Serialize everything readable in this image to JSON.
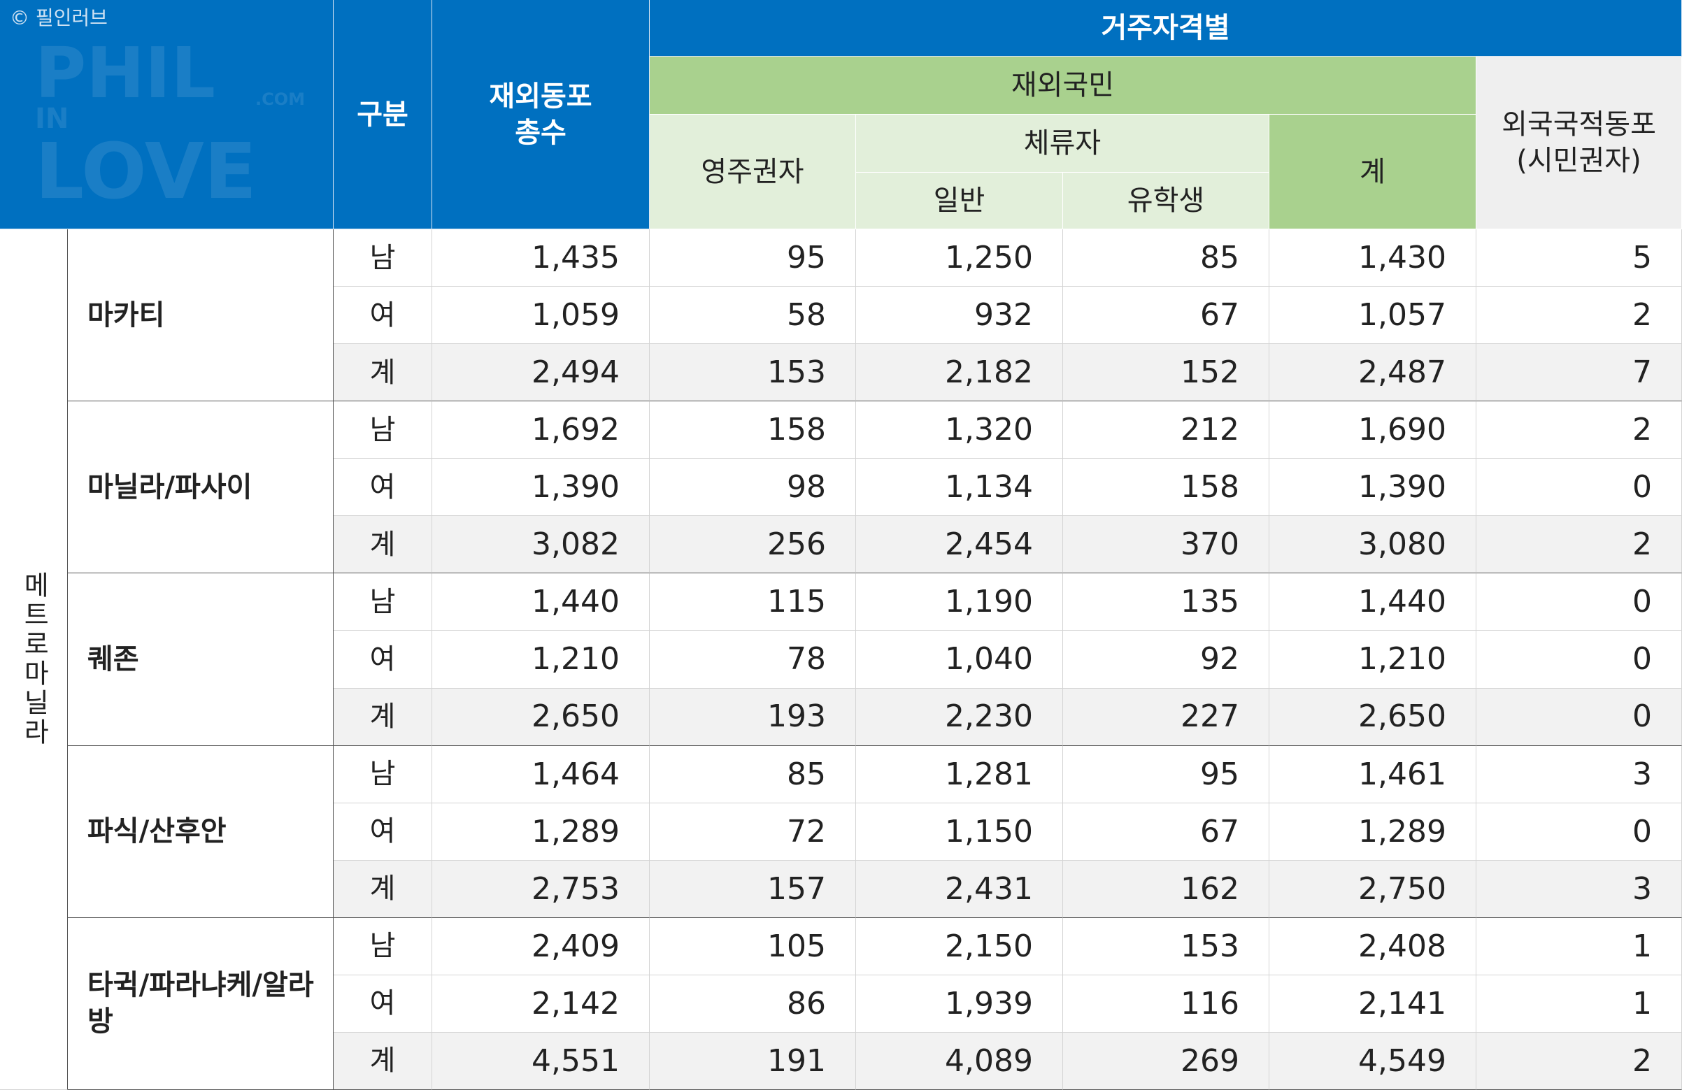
{
  "watermark": {
    "copyright": "© 필인러브",
    "logo": [
      "PHIL",
      "IN",
      "LOVE",
      ".COM"
    ]
  },
  "header": {
    "category": "구분",
    "total": [
      "재외동포",
      "총수"
    ],
    "group": "거주자격별",
    "nationals": "재외국민",
    "permanent": "영주권자",
    "sojourner": "체류자",
    "general": "일반",
    "student": "유학생",
    "subtotal": "계",
    "foreign": [
      "외국국적동포",
      "(시민권자)"
    ]
  },
  "table": {
    "metro": "메트로마닐라",
    "districts": [
      {
        "name": "마카티",
        "rows": [
          {
            "label": "남",
            "values": [
              "1,435",
              "95",
              "1,250",
              "85",
              "1,430",
              "5"
            ]
          },
          {
            "label": "여",
            "values": [
              "1,059",
              "58",
              "932",
              "67",
              "1,057",
              "2"
            ]
          },
          {
            "label": "계",
            "values": [
              "2,494",
              "153",
              "2,182",
              "152",
              "2,487",
              "7"
            ]
          }
        ]
      },
      {
        "name": "마닐라/파사이",
        "rows": [
          {
            "label": "남",
            "values": [
              "1,692",
              "158",
              "1,320",
              "212",
              "1,690",
              "2"
            ]
          },
          {
            "label": "여",
            "values": [
              "1,390",
              "98",
              "1,134",
              "158",
              "1,390",
              "0"
            ]
          },
          {
            "label": "계",
            "values": [
              "3,082",
              "256",
              "2,454",
              "370",
              "3,080",
              "2"
            ]
          }
        ]
      },
      {
        "name": "퀘존",
        "rows": [
          {
            "label": "남",
            "values": [
              "1,440",
              "115",
              "1,190",
              "135",
              "1,440",
              "0"
            ]
          },
          {
            "label": "여",
            "values": [
              "1,210",
              "78",
              "1,040",
              "92",
              "1,210",
              "0"
            ]
          },
          {
            "label": "계",
            "values": [
              "2,650",
              "193",
              "2,230",
              "227",
              "2,650",
              "0"
            ]
          }
        ]
      },
      {
        "name": "파식/산후안",
        "rows": [
          {
            "label": "남",
            "values": [
              "1,464",
              "85",
              "1,281",
              "95",
              "1,461",
              "3"
            ]
          },
          {
            "label": "여",
            "values": [
              "1,289",
              "72",
              "1,150",
              "67",
              "1,289",
              "0"
            ]
          },
          {
            "label": "계",
            "values": [
              "2,753",
              "157",
              "2,431",
              "162",
              "2,750",
              "3"
            ]
          }
        ]
      },
      {
        "name": "타귁/파라냐케/알라방",
        "rows": [
          {
            "label": "남",
            "values": [
              "2,409",
              "105",
              "2,150",
              "153",
              "2,408",
              "1"
            ]
          },
          {
            "label": "여",
            "values": [
              "2,142",
              "86",
              "1,939",
              "116",
              "2,141",
              "1"
            ]
          },
          {
            "label": "계",
            "values": [
              "4,551",
              "191",
              "4,089",
              "269",
              "4,549",
              "2"
            ]
          }
        ]
      }
    ]
  }
}
